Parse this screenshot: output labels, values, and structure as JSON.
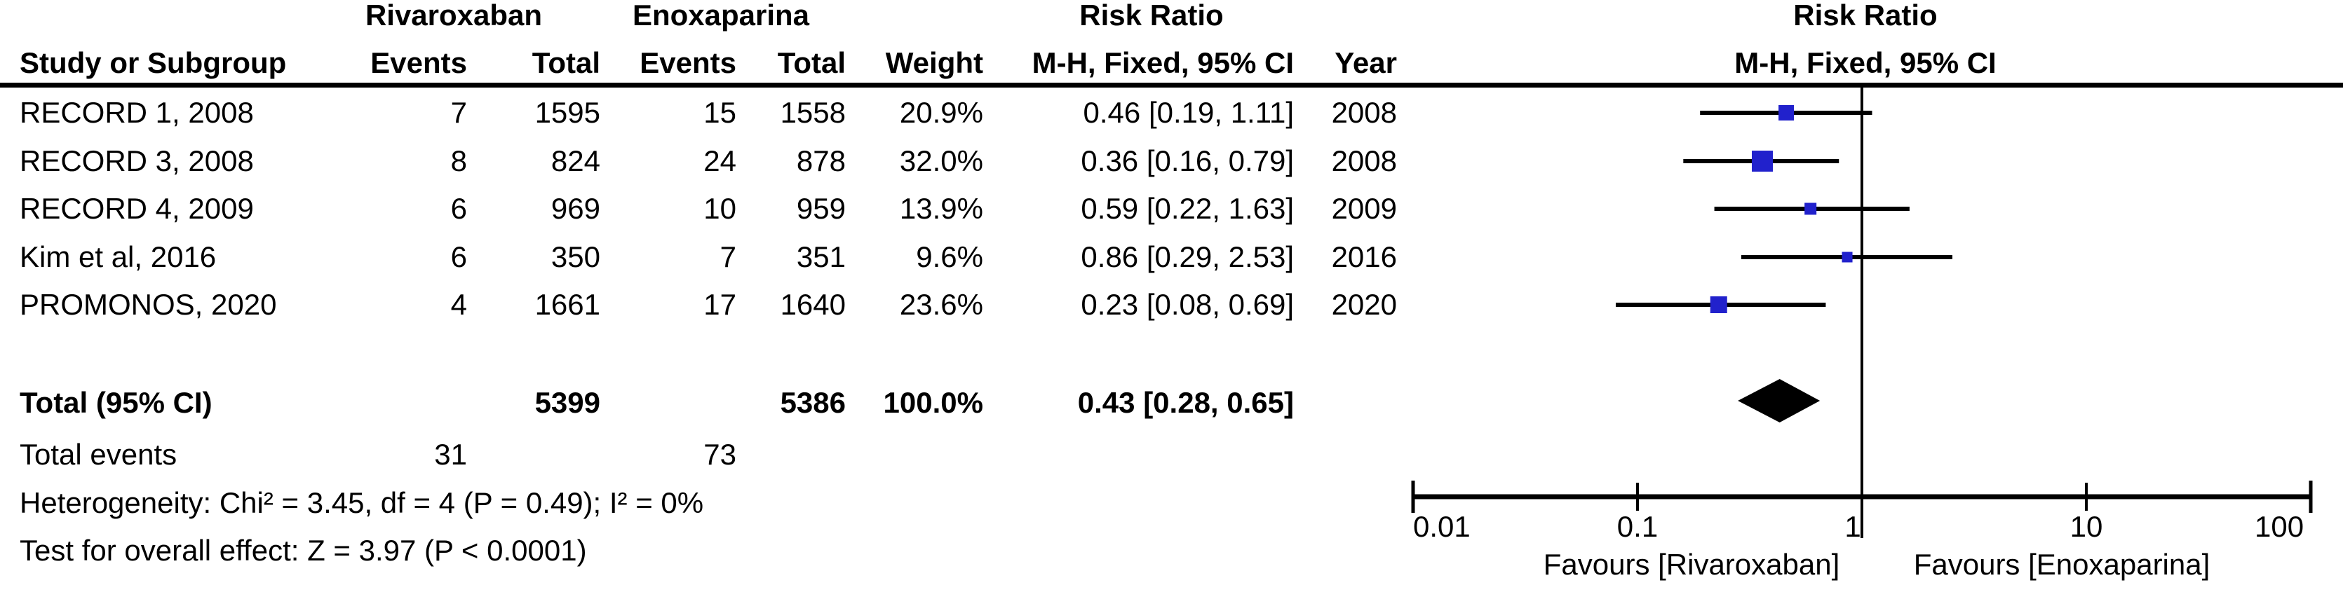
{
  "table": {
    "group1": "Rivaroxaban",
    "group2": "Enoxaparina",
    "risk_ratio_header": "Risk Ratio",
    "plot_title": "Risk Ratio",
    "plot_subtitle": "M-H, Fixed, 95% CI",
    "columns": [
      "Study or Subgroup",
      "Events",
      "Total",
      "Events",
      "Total",
      "Weight",
      "M-H, Fixed, 95% CI",
      "Year"
    ],
    "rows": [
      {
        "study": "RECORD 1, 2008",
        "e1": "7",
        "t1": "1595",
        "e2": "15",
        "t2": "1558",
        "weight": "20.9%",
        "ci": "0.46 [0.19, 1.11]",
        "year": "2008"
      },
      {
        "study": "RECORD 3, 2008",
        "e1": "8",
        "t1": "824",
        "e2": "24",
        "t2": "878",
        "weight": "32.0%",
        "ci": "0.36 [0.16, 0.79]",
        "year": "2008"
      },
      {
        "study": "RECORD 4, 2009",
        "e1": "6",
        "t1": "969",
        "e2": "10",
        "t2": "959",
        "weight": "13.9%",
        "ci": "0.59 [0.22, 1.63]",
        "year": "2009"
      },
      {
        "study": "Kim et al, 2016",
        "e1": "6",
        "t1": "350",
        "e2": "7",
        "t2": "351",
        "weight": "9.6%",
        "ci": "0.86 [0.29, 2.53]",
        "year": "2016"
      },
      {
        "study": "PROMONOS, 2020",
        "e1": "4",
        "t1": "1661",
        "e2": "17",
        "t2": "1640",
        "weight": "23.6%",
        "ci": "0.23 [0.08, 0.69]",
        "year": "2020"
      }
    ],
    "total": {
      "label": "Total (95% CI)",
      "t1": "5399",
      "t2": "5386",
      "weight": "100.0%",
      "ci": "0.43 [0.28, 0.65]"
    },
    "total_events": {
      "label": "Total events",
      "e1": "31",
      "e2": "73"
    },
    "heterogeneity": "Heterogeneity: Chi² = 3.45, df = 4 (P = 0.49); I² = 0%",
    "overall_effect": "Test for overall effect: Z = 3.97 (P < 0.0001)"
  },
  "chart_data": {
    "type": "forest",
    "x_scale": "log10",
    "xlim": [
      0.01,
      100
    ],
    "null_value": 1,
    "axis_ticks": [
      0.01,
      0.1,
      1,
      10,
      100
    ],
    "tick_labels": [
      "0.01",
      "0.1",
      "1",
      "10",
      "100"
    ],
    "effect_measure": "Risk Ratio, M-H, Fixed, 95% CI",
    "studies": [
      {
        "name": "RECORD 1, 2008",
        "rr": 0.46,
        "ci_low": 0.19,
        "ci_high": 1.11,
        "weight_pct": 20.9,
        "year": 2008
      },
      {
        "name": "RECORD 3, 2008",
        "rr": 0.36,
        "ci_low": 0.16,
        "ci_high": 0.79,
        "weight_pct": 32.0,
        "year": 2008
      },
      {
        "name": "RECORD 4, 2009",
        "rr": 0.59,
        "ci_low": 0.22,
        "ci_high": 1.63,
        "weight_pct": 13.9,
        "year": 2009
      },
      {
        "name": "Kim et al, 2016",
        "rr": 0.86,
        "ci_low": 0.29,
        "ci_high": 2.53,
        "weight_pct": 9.6,
        "year": 2016
      },
      {
        "name": "PROMONOS, 2020",
        "rr": 0.23,
        "ci_low": 0.08,
        "ci_high": 0.69,
        "weight_pct": 23.6,
        "year": 2020
      }
    ],
    "overall": {
      "label": "Total (95% CI)",
      "rr": 0.43,
      "ci_low": 0.28,
      "ci_high": 0.65,
      "weight_pct": 100.0
    },
    "favours_left": "Favours [Rivaroxaban]",
    "favours_right": "Favours [Enoxaparina]",
    "marker_color": "#2121CC",
    "line_color": "#000000",
    "diamond_color": "#000000"
  }
}
